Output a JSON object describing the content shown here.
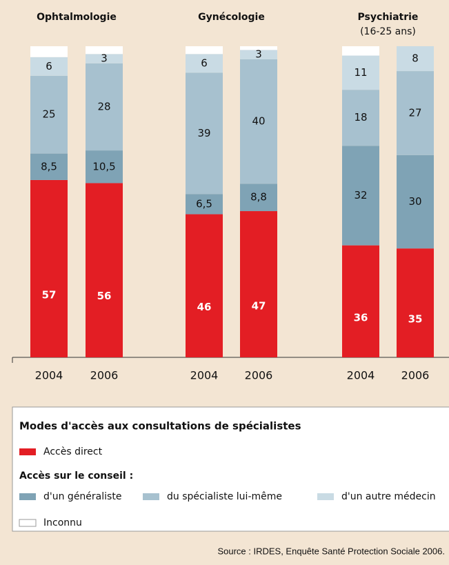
{
  "chart_data": {
    "type": "stacked-bar",
    "groups": [
      {
        "title": "Ophtalmologie"
      },
      {
        "title": "Gynécologie"
      },
      {
        "title": "Psychiatrie",
        "subtitle": "(16-25 ans)"
      }
    ],
    "categories": [
      "2004",
      "2006",
      "2004",
      "2006",
      "2004",
      "2006"
    ],
    "ylim": [
      0,
      100
    ],
    "series": [
      {
        "name": "Accès direct",
        "color": "#e31e24",
        "values": [
          57,
          56,
          46,
          47,
          36,
          35
        ]
      },
      {
        "name": "d'un généraliste",
        "color": "#7fa3b5",
        "values": [
          8.5,
          10.5,
          6.5,
          8.8,
          32,
          30
        ],
        "value_labels": [
          "8,5",
          "10,5",
          "6,5",
          "8,8",
          "32",
          "30"
        ]
      },
      {
        "name": "du spécialiste lui-même",
        "color": "#a7c1cf",
        "values": [
          25,
          28,
          39,
          40,
          18,
          27
        ]
      },
      {
        "name": "d'un autre médecin",
        "color": "#c9dbe4",
        "values": [
          6,
          3,
          6,
          3,
          11,
          8
        ]
      },
      {
        "name": "Inconnu",
        "color": "#ffffff",
        "values": [
          3.5,
          2.5,
          2.5,
          1.2,
          3,
          0
        ]
      }
    ],
    "legend": {
      "title": "Modes d'accès aux consultations de spécialistes",
      "subheading": "Accès sur le conseil :"
    },
    "source": "Source : IRDES, Enquête Santé Protection Sociale 2006."
  }
}
